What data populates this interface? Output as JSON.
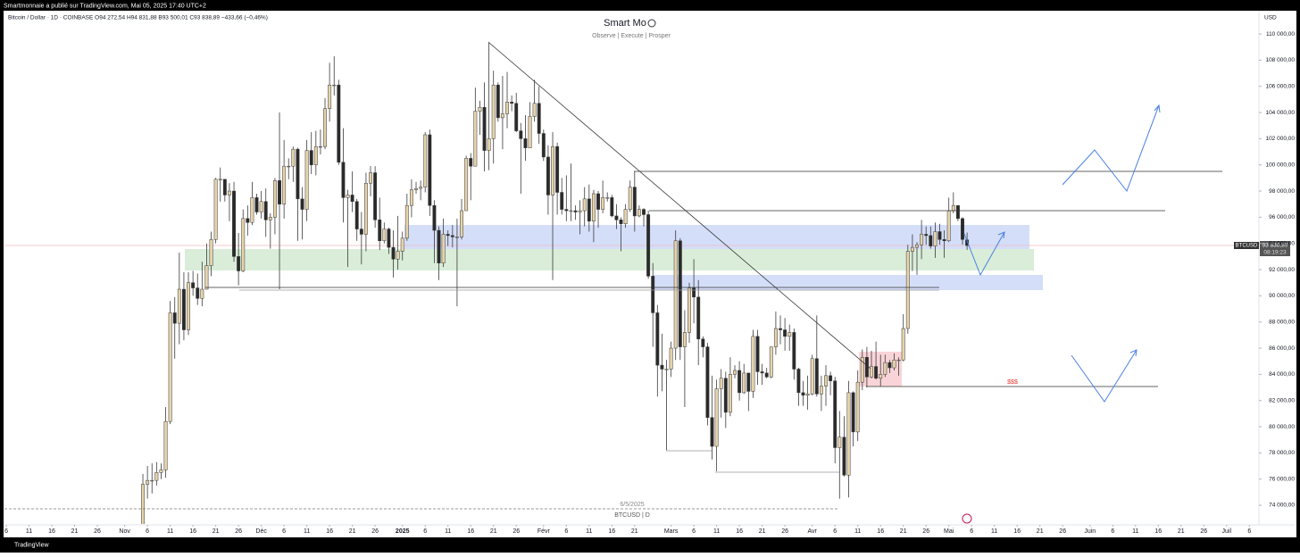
{
  "chart_data": {
    "type": "candlestick",
    "publisher": "Smartmonnaie a publié sur TradingView.com, Mai 05, 2025 17:40 UTC+2",
    "symbol_line": "Bitcoin / Dollar · 1D · COINBASE   O94 272,54   H94 831,88   B93 500,01   C93 838,89   −433,66 (−0,46%)",
    "title": "Smart Mo",
    "subtitle": "Observe |   Execute |   Prosper",
    "currency": "USD",
    "price_tag": {
      "symbol": "BTCUSD",
      "price": "93 838,89",
      "countdown": "08:19:23"
    },
    "annotations": {
      "liquidity": "$$$",
      "date": "6/5/2025",
      "symbol": "BTCUSD | D"
    },
    "brand": "TradingView",
    "up_color": "#e6d3ac",
    "down_color": "#2a2a2a",
    "outline_color": "#3a3a3a",
    "xlim": [
      -87.4,
      188.1
    ],
    "ylim": [
      72570,
      111640
    ],
    "yticks": [
      {
        "value": 74000,
        "label": "74 000,00"
      },
      {
        "value": 76000,
        "label": "76 000,00"
      },
      {
        "value": 78000,
        "label": "78 000,00"
      },
      {
        "value": 80000,
        "label": "80 000,00"
      },
      {
        "value": 82000,
        "label": "82 000,00"
      },
      {
        "value": 84000,
        "label": "84 000,00"
      },
      {
        "value": 86000,
        "label": "86 000,00"
      },
      {
        "value": 88000,
        "label": "88 000,00"
      },
      {
        "value": 90000,
        "label": "90 000,00"
      },
      {
        "value": 92000,
        "label": "92 000,00"
      },
      {
        "value": 94000,
        "label": "94 000,00"
      },
      {
        "value": 96000,
        "label": "96 000,00"
      },
      {
        "value": 98000,
        "label": "98 000,00"
      },
      {
        "value": 100000,
        "label": "100 000,00"
      },
      {
        "value": 102000,
        "label": "102 000,00"
      },
      {
        "value": 104000,
        "label": "104 000,00"
      },
      {
        "value": 106000,
        "label": "106 000,00"
      },
      {
        "value": 108000,
        "label": "108 000,00"
      },
      {
        "value": 110000,
        "label": "110 000,00"
      }
    ],
    "xticks": [
      {
        "value": -87,
        "label": "6"
      },
      {
        "value": -82,
        "label": "11"
      },
      {
        "value": -77,
        "label": "16"
      },
      {
        "value": -72,
        "label": "21"
      },
      {
        "value": -67,
        "label": "26"
      },
      {
        "value": -61,
        "label": "Nov"
      },
      {
        "value": -56,
        "label": "6"
      },
      {
        "value": -51,
        "label": "11"
      },
      {
        "value": -46,
        "label": "16"
      },
      {
        "value": -41,
        "label": "21"
      },
      {
        "value": -36,
        "label": "26"
      },
      {
        "value": -31,
        "label": "Déc"
      },
      {
        "value": -26,
        "label": "6"
      },
      {
        "value": -21,
        "label": "11"
      },
      {
        "value": -16,
        "label": "16"
      },
      {
        "value": -11,
        "label": "21"
      },
      {
        "value": -6,
        "label": "26"
      },
      {
        "value": 0,
        "label": "2025"
      },
      {
        "value": 5,
        "label": "6"
      },
      {
        "value": 10,
        "label": "11"
      },
      {
        "value": 15,
        "label": "16"
      },
      {
        "value": 20,
        "label": "21"
      },
      {
        "value": 25,
        "label": "26"
      },
      {
        "value": 31,
        "label": "Févr"
      },
      {
        "value": 36,
        "label": "6"
      },
      {
        "value": 41,
        "label": "11"
      },
      {
        "value": 46,
        "label": "16"
      },
      {
        "value": 51,
        "label": "21"
      },
      {
        "value": 59,
        "label": "Mars"
      },
      {
        "value": 64,
        "label": "6"
      },
      {
        "value": 69,
        "label": "11"
      },
      {
        "value": 74,
        "label": "16"
      },
      {
        "value": 79,
        "label": "21"
      },
      {
        "value": 84,
        "label": "26"
      },
      {
        "value": 90,
        "label": "Avr"
      },
      {
        "value": 95,
        "label": "6"
      },
      {
        "value": 100,
        "label": "11"
      },
      {
        "value": 105,
        "label": "16"
      },
      {
        "value": 110,
        "label": "21"
      },
      {
        "value": 115,
        "label": "26"
      },
      {
        "value": 120,
        "label": "Mai"
      },
      {
        "value": 125,
        "label": "6"
      },
      {
        "value": 130,
        "label": "11"
      },
      {
        "value": 135,
        "label": "16"
      },
      {
        "value": 140,
        "label": "21"
      },
      {
        "value": 145,
        "label": "26"
      },
      {
        "value": 151,
        "label": "Juin"
      },
      {
        "value": 156,
        "label": "6"
      },
      {
        "value": 161,
        "label": "11"
      },
      {
        "value": 166,
        "label": "16"
      },
      {
        "value": 171,
        "label": "21"
      },
      {
        "value": 176,
        "label": "26"
      },
      {
        "value": 181,
        "label": "Juil"
      },
      {
        "value": 186,
        "label": "6"
      }
    ],
    "x": [
      -57,
      -56,
      -55,
      -54,
      -53,
      -52,
      -51,
      -50,
      -49,
      -48,
      -47,
      -46,
      -45,
      -44,
      -43,
      -42,
      -41,
      -40,
      -39,
      -38,
      -37,
      -36,
      -35,
      -34,
      -33,
      -32,
      -31,
      -30,
      -29,
      -28,
      -27,
      -26,
      -25,
      -24,
      -23,
      -22,
      -21,
      -20,
      -19,
      -18,
      -17,
      -16,
      -15,
      -14,
      -13,
      -12,
      -11,
      -10,
      -9,
      -8,
      -7,
      -6,
      -5,
      -4,
      -3,
      -2,
      -1,
      0,
      1,
      2,
      3,
      4,
      5,
      6,
      7,
      8,
      9,
      10,
      11,
      12,
      13,
      14,
      15,
      16,
      17,
      18,
      19,
      20,
      21,
      22,
      23,
      24,
      25,
      26,
      27,
      28,
      29,
      30,
      31,
      32,
      33,
      34,
      35,
      36,
      37,
      38,
      39,
      40,
      41,
      42,
      43,
      44,
      45,
      46,
      47,
      48,
      49,
      50,
      51,
      52,
      53,
      54,
      55,
      56,
      57,
      58,
      59,
      60,
      61,
      62,
      63,
      64,
      65,
      66,
      67,
      68,
      69,
      70,
      71,
      72,
      73,
      74,
      75,
      76,
      77,
      78,
      79,
      80,
      81,
      82,
      83,
      84,
      85,
      86,
      87,
      88,
      89,
      90,
      91,
      92,
      93,
      94,
      95,
      96,
      97,
      98,
      99,
      100,
      101,
      102,
      103,
      104,
      105,
      106,
      107,
      108,
      109,
      110,
      111,
      112,
      113,
      114,
      115,
      116,
      117,
      118,
      119,
      120,
      121,
      122,
      123,
      124
    ],
    "open": [
      68800,
      75600,
      75900,
      75900,
      76500,
      76700,
      80400,
      88700,
      87900,
      90500,
      87400,
      91000,
      90600,
      89800,
      90500,
      92300,
      94300,
      98900,
      98900,
      97700,
      98000,
      93000,
      91900,
      95900,
      95600,
      97500,
      96400,
      97200,
      95800,
      96000,
      98800,
      97000,
      99900,
      99900,
      101200,
      97400,
      96600,
      101100,
      100000,
      101400,
      101400,
      104300,
      106100,
      106100,
      100200,
      97500,
      97700,
      97200,
      95100,
      94700,
      98600,
      99400,
      95800,
      94200,
      95100,
      93700,
      92800,
      93400,
      94400,
      96900,
      98100,
      98200,
      98300,
      102300,
      96900,
      95000,
      92500,
      94700,
      94600,
      94500,
      94500,
      96500,
      100500,
      99900,
      104100,
      104400,
      101100,
      102000,
      106100,
      103600,
      103900,
      104800,
      104700,
      102600,
      102000,
      101300,
      103700,
      104700,
      102400,
      100600,
      97700,
      101400,
      97900,
      96600,
      96500,
      96500,
      96400,
      96500,
      97400,
      95700,
      97800,
      96600,
      97500,
      97500,
      96100,
      95800,
      95500,
      96600,
      98300,
      96100,
      96600,
      96200,
      91500,
      88700,
      84700,
      84400,
      84400,
      86000,
      94200,
      86100,
      87200,
      90600,
      89900,
      86700,
      86100,
      80700,
      78500,
      82900,
      83700,
      81100,
      84000,
      84300,
      82600,
      84100,
      82700,
      86900,
      84200,
      84100,
      83800,
      86100,
      87500,
      87400,
      86900,
      87200,
      84400,
      82600,
      82400,
      82500,
      85200,
      82500,
      83100,
      83900,
      83500,
      78400,
      79200,
      76300,
      82600,
      79600,
      83400,
      85300,
      83800,
      84600,
      83700,
      84000,
      84900,
      84500,
      85100,
      85100,
      87500,
      93400,
      93700,
      93900,
      94700,
      94600,
      93800,
      94900,
      94300,
      94200,
      96500,
      96900,
      95900,
      94272.54
    ],
    "high": [
      76400,
      77000,
      77200,
      77300,
      77200,
      81500,
      89600,
      89900,
      93300,
      91800,
      91800,
      91900,
      91700,
      92600,
      94000,
      94900,
      99000,
      99800,
      98700,
      98600,
      98700,
      94800,
      96600,
      96900,
      98700,
      97800,
      98000,
      98200,
      96300,
      99000,
      104000,
      101900,
      100500,
      101400,
      101300,
      98300,
      101900,
      102500,
      102600,
      102700,
      105100,
      107800,
      108300,
      106500,
      102800,
      98100,
      99500,
      97400,
      96400,
      99400,
      99900,
      99900,
      97500,
      95600,
      95200,
      95000,
      96100,
      94900,
      97800,
      98900,
      98700,
      98800,
      102500,
      102700,
      97300,
      95300,
      95900,
      95000,
      95400,
      95900,
      97400,
      100700,
      100900,
      105900,
      104900,
      106300,
      109400,
      107200,
      106300,
      106800,
      107100,
      105300,
      105500,
      103200,
      103800,
      104800,
      106500,
      106000,
      102700,
      101500,
      102500,
      101700,
      99000,
      99200,
      100100,
      96900,
      97300,
      98300,
      98500,
      98100,
      98000,
      98800,
      97900,
      97700,
      97000,
      96000,
      97000,
      98800,
      99500,
      96900,
      96700,
      96500,
      92500,
      89300,
      87100,
      85100,
      86500,
      95000,
      94400,
      88900,
      91000,
      92800,
      91200,
      86900,
      86400,
      83900,
      83600,
      84400,
      84200,
      85300,
      84700,
      85000,
      84800,
      84100,
      87400,
      87400,
      84800,
      84500,
      86100,
      88800,
      88500,
      88300,
      87800,
      87500,
      84500,
      83500,
      83900,
      85500,
      88500,
      83900,
      84700,
      84200,
      83800,
      81200,
      80800,
      83500,
      82700,
      84300,
      85900,
      86100,
      85800,
      86500,
      85500,
      85500,
      85100,
      85600,
      85300,
      88600,
      93900,
      94700,
      94100,
      95800,
      95300,
      95300,
      95600,
      95500,
      95000,
      97500,
      97900,
      96900,
      96000,
      94831.88
    ],
    "low": [
      68300,
      74500,
      74900,
      75500,
      76000,
      76100,
      80200,
      85200,
      86300,
      86600,
      87000,
      90000,
      89300,
      89200,
      90500,
      91500,
      94000,
      97200,
      97200,
      95700,
      92600,
      90800,
      91800,
      94600,
      95400,
      96200,
      95900,
      94500,
      93600,
      94700,
      90500,
      95900,
      98900,
      98700,
      94200,
      94300,
      95700,
      99300,
      99200,
      100800,
      101200,
      103300,
      105300,
      100000,
      95600,
      92200,
      96400,
      94200,
      92400,
      93400,
      97600,
      95200,
      93500,
      94000,
      93200,
      91400,
      92000,
      92700,
      94200,
      96000,
      97800,
      97300,
      97900,
      96100,
      92500,
      91200,
      92200,
      93800,
      93700,
      89200,
      94300,
      96500,
      97300,
      99900,
      102300,
      99500,
      99600,
      100100,
      103300,
      101200,
      102800,
      104100,
      102500,
      97800,
      100300,
      101300,
      103300,
      101600,
      100300,
      96200,
      91200,
      96200,
      96200,
      95700,
      95700,
      95800,
      94700,
      95300,
      94900,
      94100,
      95200,
      96300,
      97200,
      96000,
      95100,
      93400,
      95200,
      96400,
      94900,
      96000,
      95300,
      91300,
      86100,
      82300,
      82700,
      78200,
      83800,
      85100,
      85100,
      81500,
      86400,
      87900,
      84700,
      85300,
      80100,
      77500,
      76600,
      80700,
      79900,
      80800,
      83700,
      82000,
      82500,
      81200,
      82200,
      83200,
      83200,
      83700,
      83700,
      85500,
      86300,
      85800,
      85800,
      83600,
      81600,
      81600,
      81300,
      82400,
      82300,
      81200,
      81600,
      82400,
      77200,
      74500,
      76200,
      74600,
      78500,
      78900,
      82800,
      83000,
      83700,
      83600,
      83100,
      83800,
      84100,
      84300,
      83900,
      85000,
      87100,
      91900,
      91600,
      92800,
      93900,
      93600,
      92900,
      93900,
      92900,
      94100,
      96300,
      95700,
      93900,
      93500.01
    ],
    "close": [
      75600,
      75900,
      75900,
      76500,
      76700,
      80400,
      88700,
      87900,
      90500,
      87400,
      91000,
      90600,
      89800,
      90500,
      92300,
      94300,
      98900,
      98900,
      97700,
      98000,
      93000,
      91900,
      95900,
      95600,
      97500,
      96400,
      97200,
      95800,
      96000,
      98800,
      97000,
      99900,
      99900,
      101200,
      97400,
      96600,
      101100,
      100000,
      101400,
      101400,
      104300,
      106100,
      106100,
      100200,
      97500,
      97700,
      97200,
      95100,
      94700,
      98600,
      99400,
      95800,
      94200,
      95100,
      93700,
      92800,
      93400,
      94400,
      96900,
      98100,
      98200,
      98300,
      102300,
      96900,
      95000,
      92500,
      94700,
      94600,
      94500,
      94500,
      96500,
      100500,
      99900,
      104100,
      104400,
      101100,
      102000,
      106100,
      103600,
      103900,
      104800,
      104700,
      102600,
      102000,
      101300,
      103700,
      104700,
      102400,
      100600,
      97700,
      101400,
      97900,
      96600,
      96500,
      96500,
      96400,
      96500,
      97400,
      95700,
      97800,
      96600,
      97500,
      97500,
      96100,
      95800,
      95500,
      96600,
      98300,
      96100,
      96600,
      96200,
      91500,
      88700,
      84700,
      84400,
      84400,
      86000,
      94200,
      86100,
      87200,
      90600,
      89900,
      86700,
      86100,
      80700,
      78500,
      82900,
      83700,
      81100,
      84000,
      84300,
      82600,
      84100,
      82700,
      86900,
      84200,
      84100,
      83800,
      86100,
      87500,
      87400,
      86900,
      87200,
      84400,
      82600,
      82400,
      82500,
      85200,
      82500,
      83100,
      83900,
      83500,
      78400,
      79200,
      76300,
      82600,
      79600,
      83400,
      85300,
      83800,
      84600,
      83700,
      84000,
      84900,
      84500,
      85100,
      85100,
      87500,
      93400,
      93700,
      93900,
      94700,
      94600,
      93800,
      94900,
      94300,
      94200,
      96500,
      96900,
      95900,
      94300,
      93838.89
    ]
  }
}
